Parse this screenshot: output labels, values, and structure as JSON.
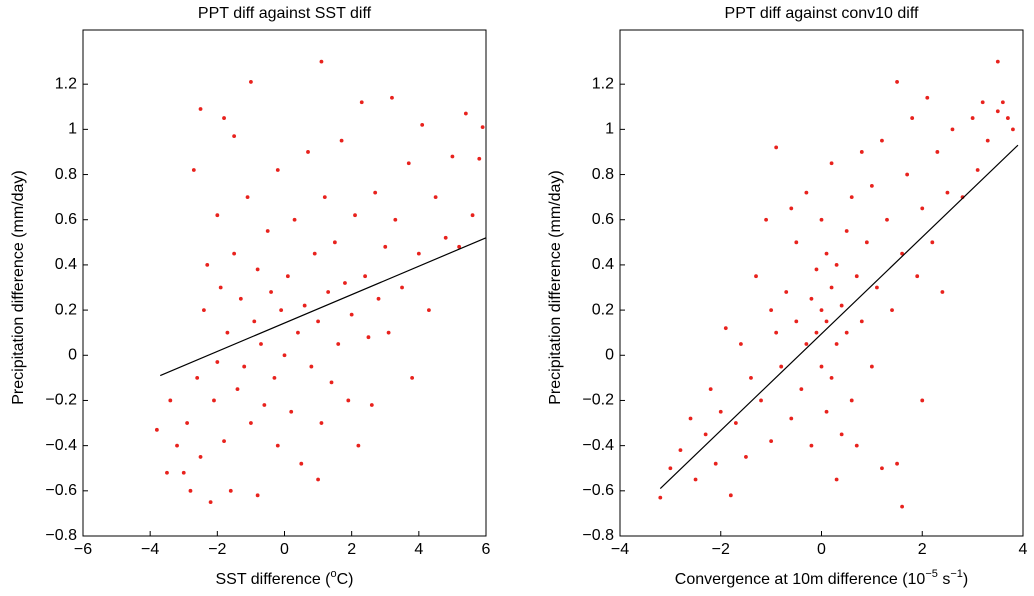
{
  "chart_data": [
    {
      "type": "scatter",
      "title": "PPT diff against SST diff",
      "x_label": [
        "SST difference (",
        "o",
        "C)"
      ],
      "y_label": "Precipitation difference (mm/day)",
      "xlim": [
        -6,
        6
      ],
      "ylim": [
        -0.8,
        1.4
      ],
      "xticks": [
        {
          "value": -6,
          "label": "−6"
        },
        {
          "value": -4,
          "label": "−4"
        },
        {
          "value": -2,
          "label": "−2"
        },
        0,
        2,
        4,
        6
      ],
      "yticks": [
        {
          "value": -0.8,
          "label": "−0.8"
        },
        {
          "value": -0.6,
          "label": "−0.6"
        },
        {
          "value": -0.4,
          "label": "−0.4"
        },
        {
          "value": -0.2,
          "label": "−0.2"
        },
        0,
        0.2,
        0.4,
        0.6,
        0.8,
        1,
        1.2
      ],
      "series": [
        {
          "color": "#e8221d",
          "x": [
            -3.8,
            -3.5,
            -3.4,
            -3.2,
            -3.0,
            -2.9,
            -2.8,
            -2.7,
            -2.6,
            -2.5,
            -2.5,
            -2.4,
            -2.3,
            -2.2,
            -2.1,
            -2.0,
            -2.0,
            -1.9,
            -1.8,
            -1.8,
            -1.7,
            -1.6,
            -1.5,
            -1.5,
            -1.4,
            -1.3,
            -1.2,
            -1.1,
            -1.0,
            -1.0,
            -0.9,
            -0.8,
            -0.8,
            -0.7,
            -0.6,
            -0.5,
            -0.4,
            -0.3,
            -0.2,
            -0.2,
            -0.1,
            0,
            0.1,
            0.2,
            0.3,
            0.4,
            0.5,
            0.6,
            0.7,
            0.8,
            0.9,
            1.0,
            1.1,
            1.1,
            1.2,
            1.3,
            1.4,
            1.5,
            1.6,
            1.7,
            1.8,
            1.9,
            2.0,
            2.1,
            2.2,
            2.3,
            2.4,
            2.5,
            2.6,
            2.7,
            2.8,
            3.0,
            3.1,
            3.2,
            3.3,
            3.5,
            3.7,
            3.8,
            4.0,
            4.1,
            4.3,
            4.5,
            4.8,
            5.0,
            5.2,
            5.4,
            5.6,
            5.8,
            5.9,
            1.0
          ],
          "values": [
            -0.33,
            -0.52,
            -0.2,
            -0.4,
            -0.52,
            -0.3,
            -0.6,
            0.82,
            -0.1,
            1.09,
            -0.45,
            0.2,
            0.4,
            -0.65,
            -0.2,
            0.62,
            -0.03,
            0.3,
            1.05,
            -0.38,
            0.1,
            -0.6,
            0.97,
            0.45,
            -0.15,
            0.25,
            -0.05,
            0.7,
            1.21,
            -0.3,
            0.15,
            -0.62,
            0.38,
            0.05,
            -0.22,
            0.55,
            0.28,
            -0.1,
            0.82,
            -0.4,
            0.2,
            0.0,
            0.35,
            -0.25,
            0.6,
            0.1,
            -0.48,
            0.22,
            0.9,
            -0.05,
            0.45,
            0.15,
            1.3,
            -0.3,
            0.7,
            0.28,
            -0.12,
            0.5,
            0.05,
            0.95,
            0.32,
            -0.2,
            0.18,
            0.62,
            -0.4,
            1.12,
            0.35,
            0.08,
            -0.22,
            0.72,
            0.25,
            0.48,
            0.1,
            1.14,
            0.6,
            0.3,
            0.85,
            -0.1,
            0.45,
            1.02,
            0.2,
            0.7,
            0.52,
            0.88,
            0.48,
            1.07,
            0.62,
            0.87,
            1.01,
            -0.55
          ]
        },
        {
          "color": "#000000",
          "line": true,
          "x": [
            -3.7,
            6
          ],
          "values": [
            -0.09,
            0.52
          ]
        }
      ]
    },
    {
      "type": "scatter",
      "title": "PPT diff against conv10 diff",
      "x_label": [
        "Convergence at 10m difference (10",
        "−5",
        " s",
        "−1",
        ")"
      ],
      "y_label": "Precipitation difference (mm/day)",
      "xlim": [
        -4,
        4
      ],
      "ylim": [
        -0.8,
        1.4
      ],
      "xticks": [
        {
          "value": -4,
          "label": "−4"
        },
        {
          "value": -2,
          "label": "−2"
        },
        0,
        2,
        4
      ],
      "yticks": [
        {
          "value": -0.8,
          "label": "−0.8"
        },
        {
          "value": -0.6,
          "label": "−0.6"
        },
        {
          "value": -0.4,
          "label": "−0.4"
        },
        {
          "value": -0.2,
          "label": "−0.2"
        },
        0,
        0.2,
        0.4,
        0.6,
        0.8,
        1,
        1.2
      ],
      "series": [
        {
          "color": "#e8221d",
          "x": [
            -3.2,
            -3.0,
            -2.8,
            -2.6,
            -2.5,
            -2.3,
            -2.2,
            -2.1,
            -2.0,
            -1.9,
            -1.8,
            -1.7,
            -1.6,
            -1.5,
            -1.4,
            -1.3,
            -1.2,
            -1.1,
            -1.0,
            -0.9,
            -0.9,
            -0.8,
            -0.7,
            -0.6,
            -0.5,
            -0.5,
            -0.4,
            -0.3,
            -0.3,
            -0.2,
            -0.2,
            -0.1,
            -0.1,
            0,
            0,
            0,
            0.1,
            0.1,
            0.1,
            0.2,
            0.2,
            0.2,
            0.3,
            0.3,
            0.4,
            0.4,
            0.5,
            0.5,
            0.6,
            0.6,
            0.7,
            0.8,
            0.8,
            0.9,
            1.0,
            1.0,
            1.1,
            1.2,
            1.2,
            1.3,
            1.4,
            1.5,
            1.5,
            1.6,
            1.6,
            1.7,
            1.8,
            1.9,
            2.0,
            2.0,
            2.1,
            2.2,
            2.3,
            2.4,
            2.5,
            2.6,
            2.8,
            3.0,
            3.1,
            3.2,
            3.3,
            3.5,
            3.5,
            3.6,
            3.7,
            3.8,
            -0.6,
            0.3,
            -1.0,
            0.7
          ],
          "values": [
            -0.63,
            -0.5,
            -0.42,
            -0.28,
            -0.55,
            -0.35,
            -0.15,
            -0.48,
            -0.25,
            0.12,
            -0.62,
            -0.3,
            0.05,
            -0.45,
            -0.1,
            0.35,
            -0.2,
            0.6,
            -0.38,
            0.1,
            0.92,
            -0.05,
            0.28,
            -0.28,
            0.15,
            0.5,
            -0.15,
            0.05,
            0.72,
            0.25,
            -0.4,
            0.1,
            0.38,
            -0.05,
            0.2,
            0.6,
            0.15,
            -0.25,
            0.45,
            0.3,
            -0.1,
            0.85,
            0.05,
            0.4,
            -0.35,
            0.22,
            0.55,
            0.1,
            0.7,
            -0.2,
            0.35,
            0.9,
            0.15,
            0.5,
            -0.05,
            0.75,
            0.3,
            0.95,
            -0.5,
            0.6,
            0.2,
            1.21,
            -0.48,
            0.45,
            -0.67,
            0.8,
            1.05,
            0.35,
            0.65,
            -0.2,
            1.14,
            0.5,
            0.9,
            0.28,
            0.72,
            1.0,
            0.7,
            1.05,
            0.82,
            1.12,
            0.95,
            1.3,
            1.08,
            1.12,
            1.05,
            1.0,
            0.65,
            -0.55,
            0.2,
            -0.4
          ]
        },
        {
          "color": "#000000",
          "line": true,
          "x": [
            -3.2,
            3.9
          ],
          "values": [
            -0.59,
            0.93
          ]
        }
      ]
    }
  ]
}
